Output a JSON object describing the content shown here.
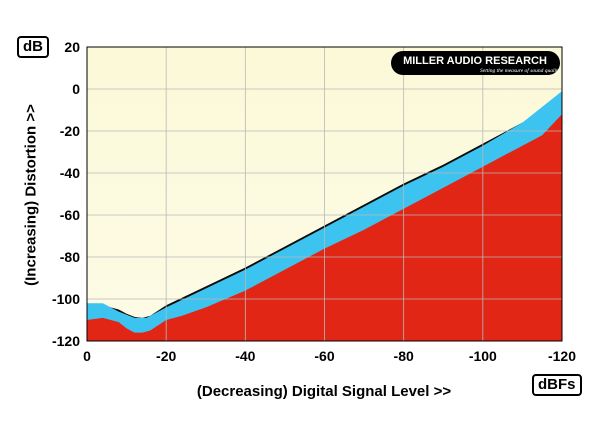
{
  "chart_data": {
    "type": "area",
    "ylabel_unit": "dB",
    "xlabel_unit": "dBFs",
    "ylabel": "(Increasing) Distortion >>",
    "xlabel": "(Decreasing) Digital Signal Level >>",
    "xlim": [
      0,
      -120
    ],
    "ylim": [
      -120,
      20
    ],
    "x_ticks": [
      0,
      -20,
      -40,
      -60,
      -80,
      -100,
      -120
    ],
    "x_tick_labels": [
      "0",
      "-20",
      "-40",
      "-60",
      "-80",
      "-100",
      "-120"
    ],
    "y_ticks": [
      20,
      0,
      -20,
      -40,
      -60,
      -80,
      -100,
      -120
    ],
    "y_tick_labels": [
      "20",
      "0",
      "-20",
      "-40",
      "-60",
      "-80",
      "-100",
      "-120"
    ],
    "grid": true,
    "logo": {
      "name": "MILLER AUDIO RESEARCH",
      "tagline": "Setting the measure of sound quality"
    },
    "colors": {
      "background": "#fdfbe6",
      "black_band": "#0c0c0c",
      "blue_band": "#3cc3ef",
      "red_fill": "#e22616"
    },
    "series": [
      {
        "color": "#0c0c0c",
        "x": [
          0,
          -4,
          -8,
          -10,
          -12,
          -14,
          -16,
          -20,
          -30,
          -40,
          -50,
          -60,
          -70,
          -80,
          -90,
          -100,
          -110,
          -115
        ],
        "y": [
          -102,
          -103,
          -105,
          -107,
          -108.5,
          -109,
          -108,
          -103,
          -94,
          -85,
          -75,
          -65,
          -55,
          -45,
          -36,
          -26,
          -16,
          -11
        ]
      },
      {
        "color": "#3cc3ef",
        "x": [
          0,
          -4,
          -8,
          -12,
          -15,
          -20,
          -30,
          -40,
          -50,
          -60,
          -70,
          -80,
          -90,
          -100,
          -110,
          -120
        ],
        "y": [
          -102,
          -102,
          -106,
          -109,
          -109,
          -104,
          -95,
          -86,
          -76,
          -66,
          -56,
          -46,
          -37,
          -27,
          -16,
          -1
        ]
      },
      {
        "color": "#e22616",
        "x": [
          0,
          -4,
          -8,
          -10,
          -12,
          -14,
          -16,
          -20,
          -24,
          -30,
          -40,
          -50,
          -60,
          -70,
          -80,
          -90,
          -100,
          -110,
          -115,
          -120
        ],
        "y": [
          -110,
          -109,
          -111,
          -114,
          -116,
          -116,
          -115,
          -110,
          -108,
          -104,
          -96,
          -86,
          -76,
          -67,
          -57,
          -47,
          -37,
          -27,
          -22,
          -12
        ]
      }
    ]
  }
}
